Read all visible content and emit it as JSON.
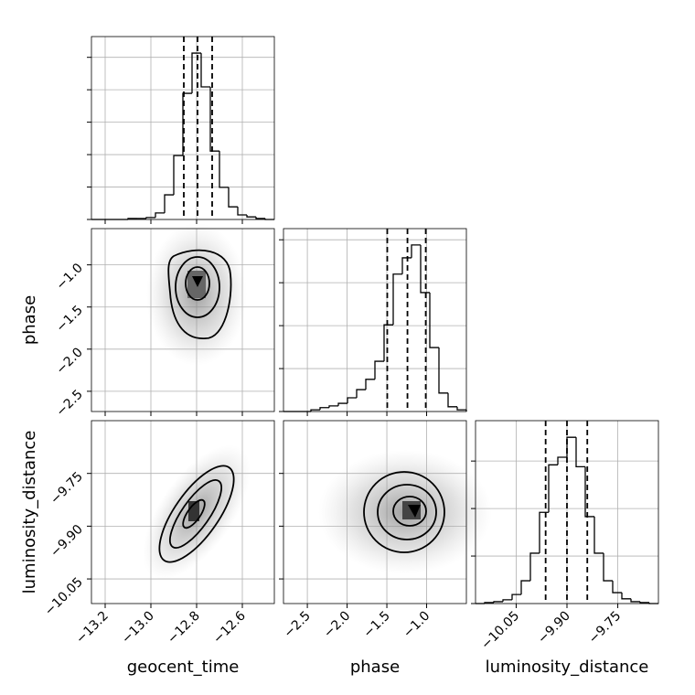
{
  "chart_data": {
    "type": "corner",
    "params": [
      {
        "name": "geocent_time",
        "xlim": [
          -13.26,
          -12.46
        ],
        "xticks": [
          {
            "value": -13.2,
            "label": "−13.2"
          },
          {
            "value": -13.0,
            "label": "−13.0"
          },
          {
            "value": -12.8,
            "label": "−12.8"
          },
          {
            "value": -12.6,
            "label": "−12.6"
          }
        ],
        "bins": [
          -13.26,
          -13.22,
          -13.18,
          -13.14,
          -13.1,
          -13.06,
          -13.02,
          -12.98,
          -12.94,
          -12.9,
          -12.86,
          -12.82,
          -12.78,
          -12.74,
          -12.7,
          -12.66,
          -12.62,
          -12.58,
          -12.54,
          -12.5,
          -12.46
        ],
        "counts": [
          0,
          0,
          0,
          0,
          3,
          3,
          6,
          20,
          76,
          197,
          389,
          513,
          409,
          211,
          99,
          39,
          14,
          8,
          3,
          0
        ],
        "hist_ylim": [
          0,
          564
        ],
        "hist_yticks": [
          0,
          100,
          200,
          300,
          400,
          500
        ],
        "quantiles": [
          -12.856,
          -12.796,
          -12.732
        ]
      },
      {
        "name": "phase",
        "xlim": [
          -2.8,
          -0.5
        ],
        "xticks": [
          {
            "value": -2.5,
            "label": "−2.5"
          },
          {
            "value": -2.0,
            "label": "−2.0"
          },
          {
            "value": -1.5,
            "label": "−1.5"
          },
          {
            "value": -1.0,
            "label": "−1.0"
          }
        ],
        "ylim": [
          -2.74,
          -0.57
        ],
        "yticks": [
          {
            "value": -2.5,
            "label": "−2.5"
          },
          {
            "value": -2.0,
            "label": "−2.0"
          },
          {
            "value": -1.5,
            "label": "−1.5"
          },
          {
            "value": -1.0,
            "label": "−1.0"
          }
        ],
        "bins": [
          -2.8,
          -2.685,
          -2.57,
          -2.455,
          -2.34,
          -2.225,
          -2.11,
          -1.995,
          -1.88,
          -1.765,
          -1.65,
          -1.535,
          -1.42,
          -1.305,
          -1.19,
          -1.075,
          -0.96,
          -0.845,
          -0.73,
          -0.615,
          -0.5
        ],
        "counts": [
          0,
          0,
          0,
          4,
          9,
          13,
          19,
          32,
          51,
          75,
          117,
          202,
          320,
          358,
          388,
          277,
          149,
          43,
          11,
          4
        ],
        "hist_ylim": [
          0,
          426
        ],
        "hist_yticks": [
          0,
          100,
          200,
          300,
          400
        ],
        "quantiles": [
          -1.495,
          -1.241,
          -1.011
        ]
      },
      {
        "name": "luminosity_distance",
        "xlim": [
          -10.17,
          -9.63
        ],
        "xticks": [
          {
            "value": -10.05,
            "label": "−10.05"
          },
          {
            "value": -9.9,
            "label": "−9.90"
          },
          {
            "value": -9.75,
            "label": "−9.75"
          }
        ],
        "ylim": [
          -10.12,
          -9.6
        ],
        "yticks": [
          {
            "value": -10.05,
            "label": "−10.05"
          },
          {
            "value": -9.9,
            "label": "−9.90"
          },
          {
            "value": -9.75,
            "label": "−9.75"
          }
        ],
        "bins": [
          -10.17,
          -10.143,
          -10.116,
          -10.089,
          -10.062,
          -10.035,
          -10.008,
          -9.981,
          -9.954,
          -9.927,
          -9.9,
          -9.873,
          -9.846,
          -9.819,
          -9.792,
          -9.765,
          -9.738,
          -9.711,
          -9.684,
          -9.657,
          -9.63
        ],
        "counts": [
          0,
          2,
          4,
          8,
          19,
          48,
          106,
          192,
          292,
          308,
          350,
          288,
          183,
          106,
          48,
          23,
          10,
          4,
          2,
          0
        ],
        "hist_ylim": [
          0,
          385
        ],
        "hist_yticks": [
          0,
          100,
          200,
          300
        ],
        "quantiles": [
          -9.963,
          -9.9,
          -9.84
        ]
      }
    ]
  }
}
